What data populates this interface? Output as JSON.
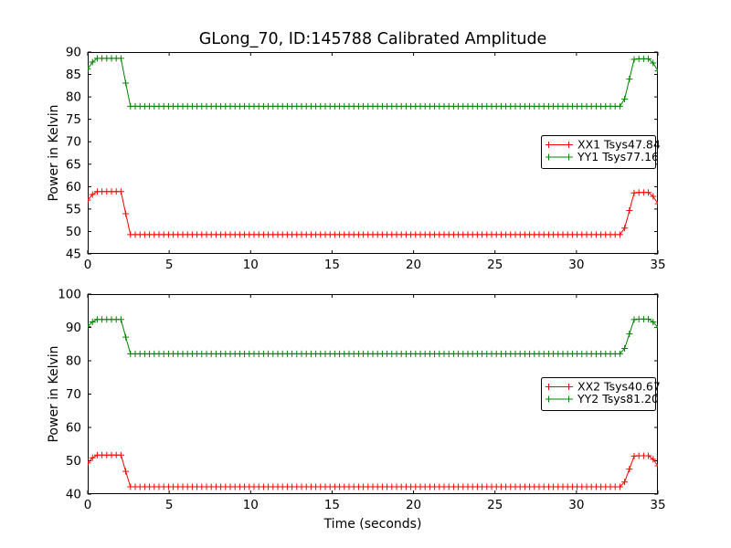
{
  "figure": {
    "title": "GLong_70, ID:145788 Calibrated Amplitude",
    "background": "#ffffff",
    "text_color": "#000000"
  },
  "chart_data": [
    {
      "id": "top",
      "type": "line",
      "title": "",
      "xlabel": "",
      "ylabel": "Power in Kelvin",
      "xlim": [
        0,
        35
      ],
      "ylim": [
        45,
        90
      ],
      "xticks": [
        0,
        5,
        10,
        15,
        20,
        25,
        30,
        35
      ],
      "yticks": [
        45,
        50,
        55,
        60,
        65,
        70,
        75,
        80,
        85,
        90
      ],
      "grid": false,
      "legend_position": "center right",
      "sample_count": 121,
      "series": [
        {
          "name": "XX1",
          "legend_label": "XX1 Tsys47.84",
          "color": "#ff0000",
          "marker": "plus",
          "breakpoints": [
            [
              0,
              57.0
            ],
            [
              0.45,
              58.9
            ],
            [
              2.05,
              58.9
            ],
            [
              2.6,
              49.3
            ],
            [
              32.85,
              49.3
            ],
            [
              33.55,
              58.7
            ],
            [
              34.55,
              58.7
            ],
            [
              35,
              56.2
            ]
          ]
        },
        {
          "name": "YY1",
          "legend_label": "YY1 Tsys77.16",
          "color": "#008000",
          "marker": "plus",
          "breakpoints": [
            [
              0,
              86.2
            ],
            [
              0.45,
              88.6
            ],
            [
              2.05,
              88.6
            ],
            [
              2.6,
              77.9
            ],
            [
              32.85,
              77.9
            ],
            [
              33.55,
              88.5
            ],
            [
              34.55,
              88.5
            ],
            [
              35,
              85.8
            ]
          ]
        }
      ]
    },
    {
      "id": "bottom",
      "type": "line",
      "title": "",
      "xlabel": "Time (seconds)",
      "ylabel": "Power in Kelvin",
      "xlim": [
        0,
        35
      ],
      "ylim": [
        40,
        100
      ],
      "xticks": [
        0,
        5,
        10,
        15,
        20,
        25,
        30,
        35
      ],
      "yticks": [
        40,
        50,
        60,
        70,
        80,
        90,
        100
      ],
      "grid": false,
      "legend_position": "center right",
      "sample_count": 121,
      "series": [
        {
          "name": "XX2",
          "legend_label": "XX2 Tsys40.67",
          "color": "#ff0000",
          "marker": "plus",
          "breakpoints": [
            [
              0,
              49.4
            ],
            [
              0.45,
              51.7
            ],
            [
              2.05,
              51.7
            ],
            [
              2.6,
              42.2
            ],
            [
              32.85,
              42.2
            ],
            [
              33.55,
              51.5
            ],
            [
              34.55,
              51.5
            ],
            [
              35,
              48.5
            ]
          ]
        },
        {
          "name": "YY2",
          "legend_label": "YY2 Tsys81.20",
          "color": "#008000",
          "marker": "plus",
          "breakpoints": [
            [
              0,
              90.3
            ],
            [
              0.45,
              92.4
            ],
            [
              2.05,
              92.4
            ],
            [
              2.6,
              82.1
            ],
            [
              32.85,
              82.1
            ],
            [
              33.55,
              92.5
            ],
            [
              34.55,
              92.5
            ],
            [
              35,
              90.0
            ]
          ]
        }
      ]
    }
  ]
}
